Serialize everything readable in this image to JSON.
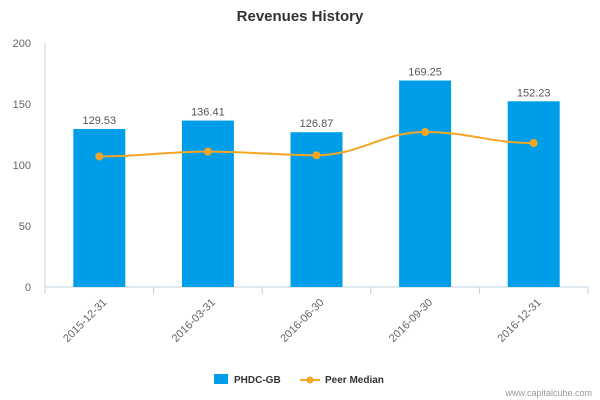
{
  "chart_data": {
    "type": "bar",
    "title": "Revenues History",
    "categories": [
      "2015-12-31",
      "2016-03-31",
      "2016-06-30",
      "2016-09-30",
      "2016-12-31"
    ],
    "series": [
      {
        "name": "PHDC-GB",
        "kind": "bar",
        "color": "#009ee8",
        "values": [
          129.53,
          136.41,
          126.87,
          169.25,
          152.23
        ],
        "labels": [
          "129.53",
          "136.41",
          "126.87",
          "169.25",
          "152.23"
        ]
      },
      {
        "name": "Peer Median",
        "kind": "line",
        "color": "#f5a623",
        "values": [
          107,
          111,
          108,
          127,
          118
        ]
      }
    ],
    "ylim": [
      0,
      200
    ],
    "yticks": [
      0,
      50,
      100,
      150,
      200
    ],
    "grid": false,
    "legend": "bottom-center"
  },
  "credit": "www.capitalcube.com"
}
